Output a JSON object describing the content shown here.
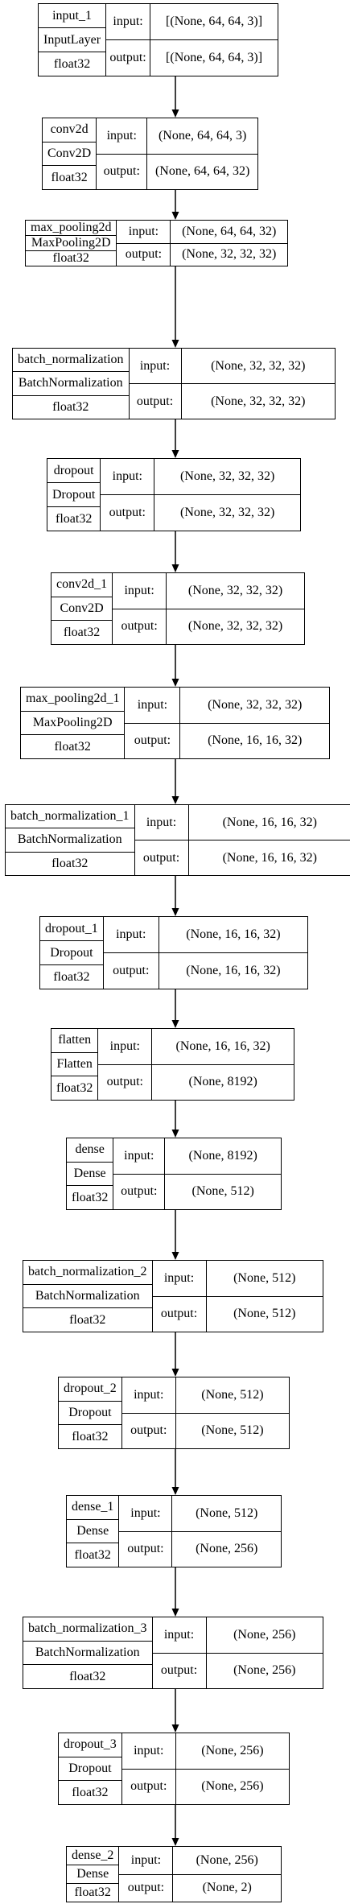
{
  "labels": {
    "input": "input:",
    "output": "output:"
  },
  "layers": [
    {
      "name": "input_1",
      "type": "InputLayer",
      "dtype": "float32",
      "input": "[(None, 64, 64, 3)]",
      "output": "[(None, 64, 64, 3)]"
    },
    {
      "name": "conv2d",
      "type": "Conv2D",
      "dtype": "float32",
      "input": "(None, 64, 64, 3)",
      "output": "(None, 64, 64, 32)"
    },
    {
      "name": "max_pooling2d",
      "type": "MaxPooling2D",
      "dtype": "float32",
      "input": "(None, 64, 64, 32)",
      "output": "(None, 32, 32, 32)"
    },
    {
      "name": "batch_normalization",
      "type": "BatchNormalization",
      "dtype": "float32",
      "input": "(None, 32, 32, 32)",
      "output": "(None, 32, 32, 32)"
    },
    {
      "name": "dropout",
      "type": "Dropout",
      "dtype": "float32",
      "input": "(None, 32, 32, 32)",
      "output": "(None, 32, 32, 32)"
    },
    {
      "name": "conv2d_1",
      "type": "Conv2D",
      "dtype": "float32",
      "input": "(None, 32, 32, 32)",
      "output": "(None, 32, 32, 32)"
    },
    {
      "name": "max_pooling2d_1",
      "type": "MaxPooling2D",
      "dtype": "float32",
      "input": "(None, 32, 32, 32)",
      "output": "(None, 16, 16, 32)"
    },
    {
      "name": "batch_normalization_1",
      "type": "BatchNormalization",
      "dtype": "float32",
      "input": "(None, 16, 16, 32)",
      "output": "(None, 16, 16, 32)"
    },
    {
      "name": "dropout_1",
      "type": "Dropout",
      "dtype": "float32",
      "input": "(None, 16, 16, 32)",
      "output": "(None, 16, 16, 32)"
    },
    {
      "name": "flatten",
      "type": "Flatten",
      "dtype": "float32",
      "input": "(None, 16, 16, 32)",
      "output": "(None, 8192)"
    },
    {
      "name": "dense",
      "type": "Dense",
      "dtype": "float32",
      "input": "(None, 8192)",
      "output": "(None, 512)"
    },
    {
      "name": "batch_normalization_2",
      "type": "BatchNormalization",
      "dtype": "float32",
      "input": "(None, 512)",
      "output": "(None, 512)"
    },
    {
      "name": "dropout_2",
      "type": "Dropout",
      "dtype": "float32",
      "input": "(None, 512)",
      "output": "(None, 512)"
    },
    {
      "name": "dense_1",
      "type": "Dense",
      "dtype": "float32",
      "input": "(None, 512)",
      "output": "(None, 256)"
    },
    {
      "name": "batch_normalization_3",
      "type": "BatchNormalization",
      "dtype": "float32",
      "input": "(None, 256)",
      "output": "(None, 256)"
    },
    {
      "name": "dropout_3",
      "type": "Dropout",
      "dtype": "float32",
      "input": "(None, 256)",
      "output": "(None, 256)"
    },
    {
      "name": "dense_2",
      "type": "Dense",
      "dtype": "float32",
      "input": "(None, 256)",
      "output": "(None, 2)"
    }
  ]
}
